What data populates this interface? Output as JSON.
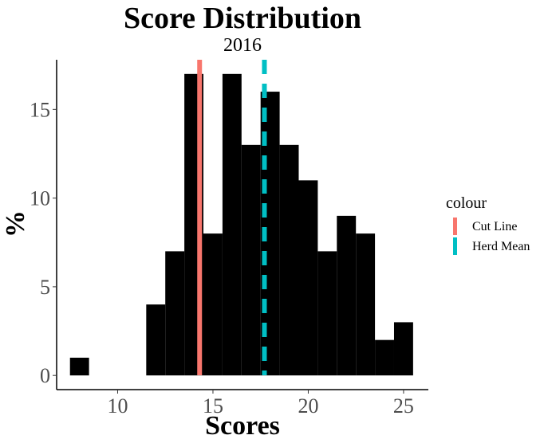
{
  "chart_data": {
    "type": "histogram",
    "title": "Score Distribution",
    "subtitle": "2016",
    "xlabel": "Scores",
    "ylabel": "%",
    "xlim": [
      6.8,
      26.3
    ],
    "ylim": [
      -0.8,
      17.8
    ],
    "x_ticks": [
      10,
      15,
      20,
      25
    ],
    "y_ticks": [
      0,
      5,
      10,
      15
    ],
    "grid": false,
    "bin_width": 1,
    "bins": [
      {
        "start": 7.5,
        "end": 8.5,
        "value": 1
      },
      {
        "start": 8.5,
        "end": 9.5,
        "value": 0
      },
      {
        "start": 9.5,
        "end": 10.5,
        "value": 0
      },
      {
        "start": 10.5,
        "end": 11.5,
        "value": 0
      },
      {
        "start": 11.5,
        "end": 12.5,
        "value": 4
      },
      {
        "start": 12.5,
        "end": 13.5,
        "value": 7
      },
      {
        "start": 13.5,
        "end": 14.5,
        "value": 17
      },
      {
        "start": 14.5,
        "end": 15.5,
        "value": 8
      },
      {
        "start": 15.5,
        "end": 16.5,
        "value": 17
      },
      {
        "start": 16.5,
        "end": 17.5,
        "value": 13
      },
      {
        "start": 17.5,
        "end": 18.5,
        "value": 16
      },
      {
        "start": 18.5,
        "end": 19.5,
        "value": 13
      },
      {
        "start": 19.5,
        "end": 20.5,
        "value": 11
      },
      {
        "start": 20.5,
        "end": 21.5,
        "value": 7
      },
      {
        "start": 21.5,
        "end": 22.5,
        "value": 9
      },
      {
        "start": 22.5,
        "end": 23.5,
        "value": 8
      },
      {
        "start": 23.5,
        "end": 24.5,
        "value": 2
      },
      {
        "start": 24.5,
        "end": 25.5,
        "value": 3
      }
    ],
    "bar_color": "#000000",
    "lines": [
      {
        "name": "Cut Line",
        "x": 14.3,
        "color": "#F8766D",
        "style": "solid"
      },
      {
        "name": "Herd Mean",
        "x": 17.7,
        "color": "#00BFC4",
        "style": "dashed"
      }
    ],
    "legend": {
      "title": "colour",
      "position": "right"
    }
  }
}
